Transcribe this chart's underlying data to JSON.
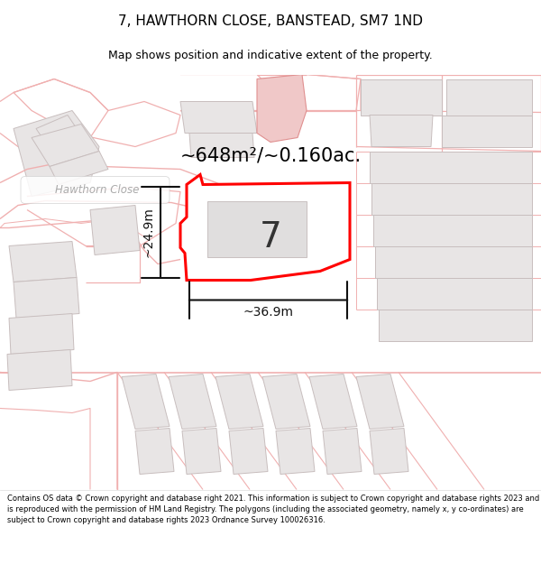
{
  "title": "7, HAWTHORN CLOSE, BANSTEAD, SM7 1ND",
  "subtitle": "Map shows position and indicative extent of the property.",
  "area_text": "~648m²/~0.160ac.",
  "dim_width": "~36.9m",
  "dim_height": "~24.9m",
  "label_number": "7",
  "footer": "Contains OS data © Crown copyright and database right 2021. This information is subject to Crown copyright and database rights 2023 and is reproduced with the permission of HM Land Registry. The polygons (including the associated geometry, namely x, y co-ordinates) are subject to Crown copyright and database rights 2023 Ordnance Survey 100026316.",
  "map_bg": "#f7f2f2",
  "plot_fill": "#ffffff",
  "plot_edge": "#ff0000",
  "bld_fill": "#e8e5e5",
  "bld_edge": "#c8bebe",
  "road_line": "#f0b0b0",
  "pink_fill": "#f0c8c8",
  "pink_edge": "#e09090",
  "street_label_color": "#aaaaaa",
  "dim_color": "#111111",
  "area_fontsize": 15,
  "label_fontsize": 28,
  "dim_fontsize": 10
}
